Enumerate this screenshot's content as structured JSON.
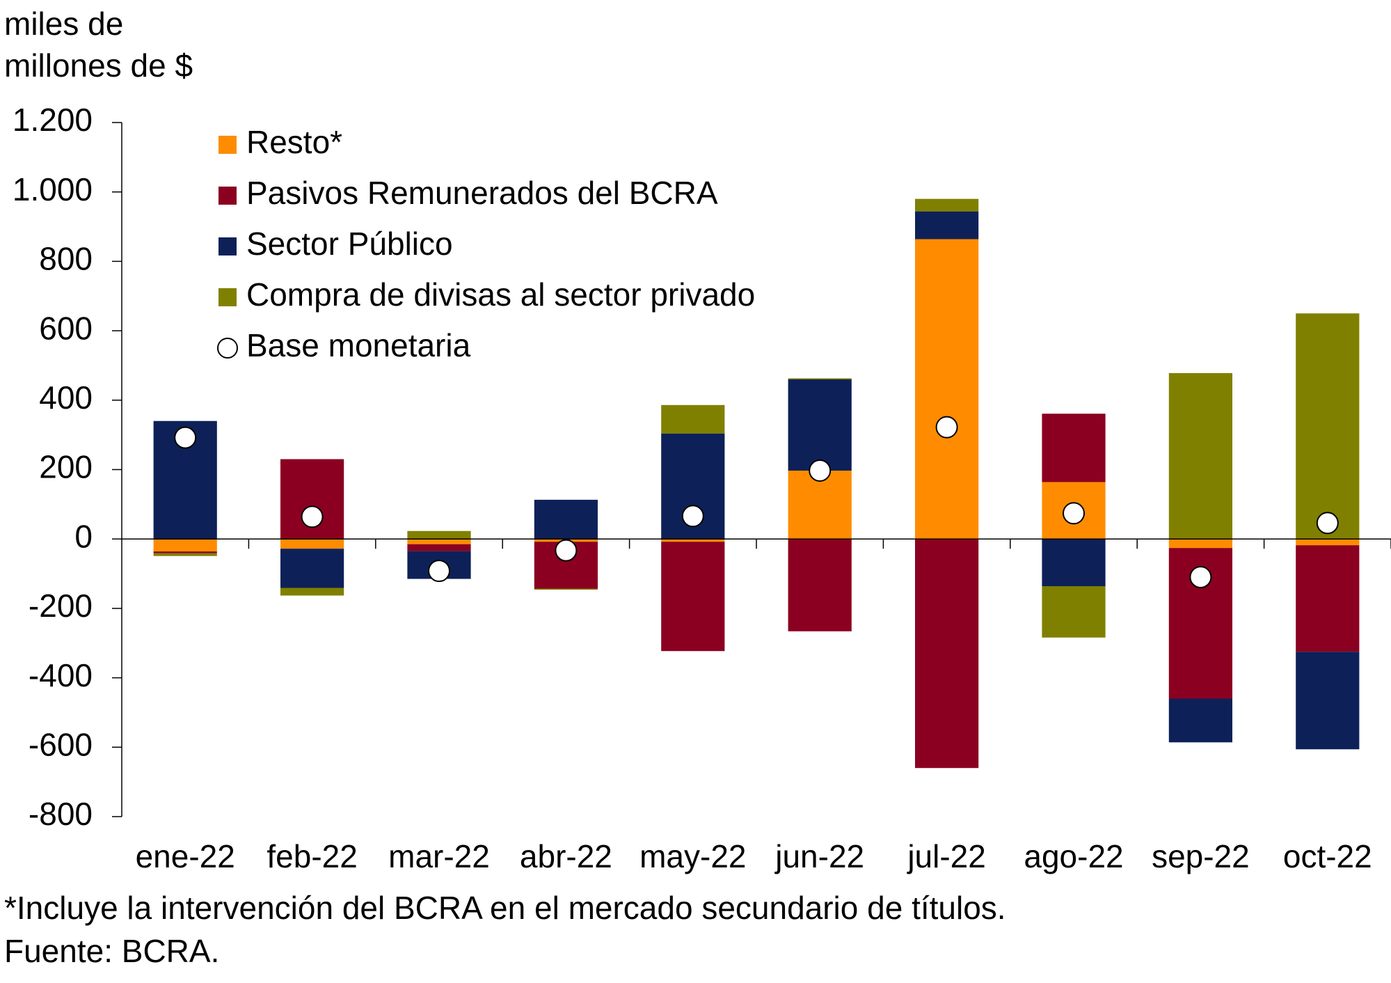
{
  "chart_data": {
    "type": "bar",
    "stacked": true,
    "y_label": [
      "miles de",
      "millones de $"
    ],
    "categories": [
      "ene-22",
      "feb-22",
      "mar-22",
      "abr-22",
      "may-22",
      "jun-22",
      "jul-22",
      "ago-22",
      "sep-22",
      "oct-22"
    ],
    "series": [
      {
        "name": "Resto*",
        "color": "#ff8c00",
        "values": [
          -36,
          -28,
          -15,
          -8,
          -8,
          197,
          864,
          164,
          -26,
          -18
        ]
      },
      {
        "name": "Pasivos Remunerados del BCRA",
        "color": "#8b0020",
        "values": [
          -5,
          230,
          -20,
          -135,
          -315,
          -266,
          -660,
          197,
          -434,
          -307
        ]
      },
      {
        "name": "Sector Público",
        "color": "#0d2158",
        "values": [
          340,
          -113,
          -80,
          113,
          304,
          263,
          80,
          -136,
          -126,
          -281
        ]
      },
      {
        "name": "Compra de divisas al sector privado",
        "color": "#808000",
        "values": [
          -8,
          -22,
          23,
          -3,
          82,
          3,
          36,
          -148,
          478,
          650
        ]
      }
    ],
    "base": {
      "name": "Base monetaria",
      "values": [
        292,
        64,
        -92,
        -33,
        66,
        197,
        322,
        74,
        -110,
        46
      ]
    },
    "ylim": [
      -800,
      1200
    ],
    "yticks": [
      -800,
      -600,
      -400,
      -200,
      0,
      200,
      400,
      600,
      800,
      {
        "value": 1000,
        "label": "1.000"
      },
      {
        "value": 1200,
        "label": "1.200"
      }
    ],
    "notes": [
      "*Incluye la intervención del BCRA en el mercado secundario de títulos.",
      "Fuente: BCRA."
    ]
  }
}
